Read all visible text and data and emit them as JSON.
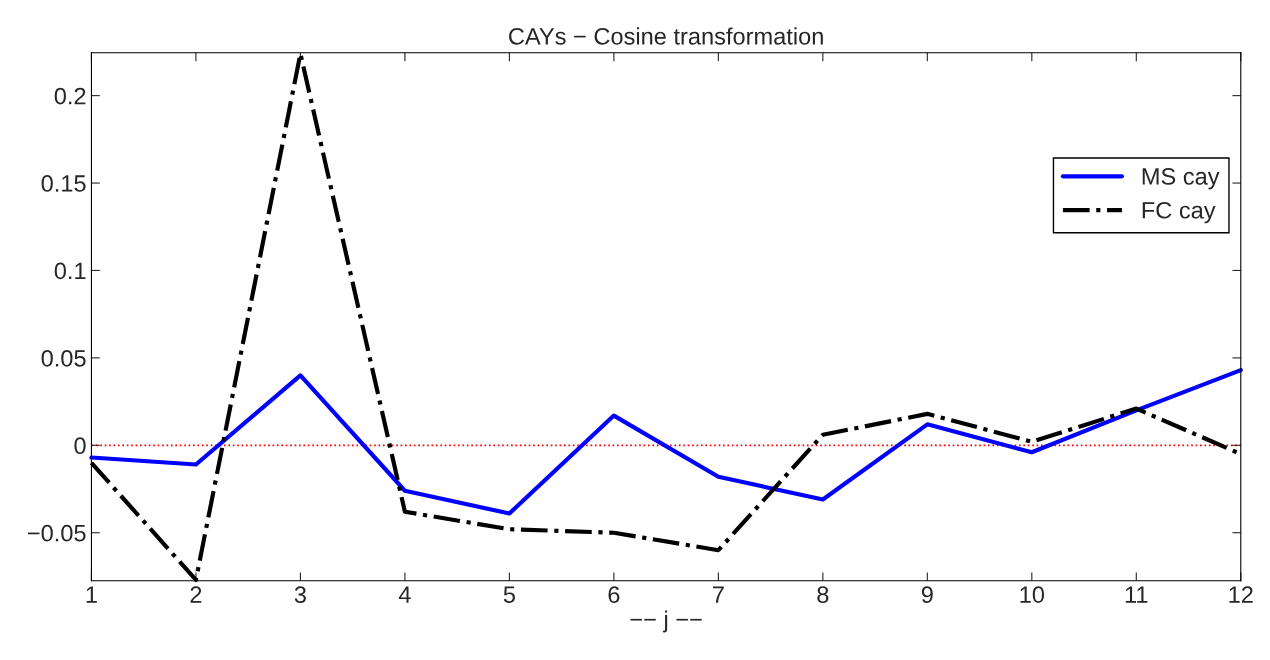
{
  "chart_data": {
    "type": "line",
    "title": "CAYs − Cosine transformation",
    "xlabel": "−− j −−",
    "x": [
      1,
      2,
      3,
      4,
      5,
      6,
      7,
      8,
      9,
      10,
      11,
      12
    ],
    "series": [
      {
        "name": "MS cay",
        "color": "#0000ff",
        "line_style": "solid",
        "values": [
          -0.007,
          -0.011,
          0.04,
          -0.026,
          -0.039,
          0.017,
          -0.018,
          -0.031,
          0.012,
          -0.004,
          0.02,
          0.043
        ]
      },
      {
        "name": "FC cay",
        "color": "#000000",
        "line_style": "dashdot",
        "values": [
          -0.01,
          -0.077,
          0.224,
          -0.038,
          -0.048,
          -0.05,
          -0.06,
          0.006,
          0.018,
          0.002,
          0.021,
          -0.005
        ]
      }
    ],
    "xlim": [
      1,
      12
    ],
    "xticks": [
      1,
      2,
      3,
      4,
      5,
      6,
      7,
      8,
      9,
      10,
      11,
      12
    ],
    "ylim": [
      -0.0775,
      0.2245
    ],
    "yticks": [
      {
        "value": -0.05,
        "label": "−0.05"
      },
      0,
      0.05,
      0.1,
      0.15,
      0.2
    ],
    "ref_lines": [
      {
        "axis": "y",
        "value": 0,
        "color": "#ff0000",
        "line_style": "dotted"
      }
    ],
    "grid": false,
    "legend": "right",
    "marker": "none"
  }
}
